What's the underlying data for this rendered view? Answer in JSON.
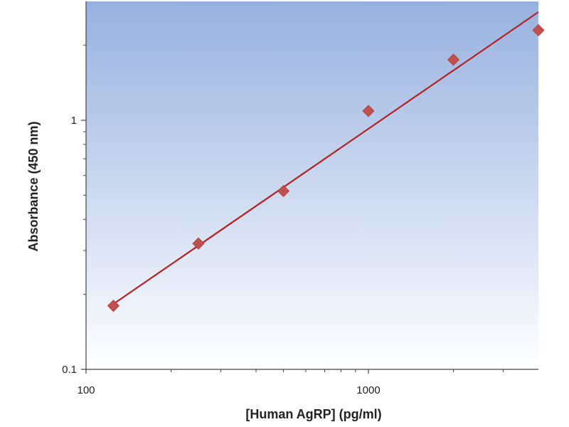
{
  "chart_data": {
    "type": "scatter",
    "title": "",
    "xlabel": "[Human AgRP] (pg/ml)",
    "ylabel": "Absorbance (450 nm)",
    "x_scale": "log",
    "y_scale": "log",
    "xlim": [
      100,
      4000
    ],
    "ylim": [
      0.1,
      3
    ],
    "x_ticks": [
      {
        "value": 100,
        "label": "100"
      },
      {
        "value": 1000,
        "label": "1000"
      }
    ],
    "x_minor_ticks": [
      200,
      300,
      400,
      500,
      600,
      700,
      800,
      900,
      2000,
      3000
    ],
    "y_ticks": [
      {
        "value": 0.1,
        "label": "0.1"
      },
      {
        "value": 1,
        "label": "1"
      }
    ],
    "y_minor_ticks": [
      0.2,
      0.3,
      0.4,
      0.5,
      0.6,
      0.7,
      0.8,
      0.9,
      2
    ],
    "grid": false,
    "legend": "none",
    "series": [
      {
        "type": "scatter",
        "x": [
          125,
          250,
          500,
          1000,
          2000,
          4000
        ],
        "y": [
          0.18,
          0.32,
          0.52,
          1.09,
          1.75,
          2.3
        ],
        "color": "#c0504d",
        "marker": "diamond"
      },
      {
        "type": "line",
        "x": [
          125,
          4000
        ],
        "y": [
          0.183,
          2.72
        ],
        "color": "#b22222"
      }
    ],
    "background_gradient": [
      "#97b1df",
      "#ffffff"
    ]
  }
}
